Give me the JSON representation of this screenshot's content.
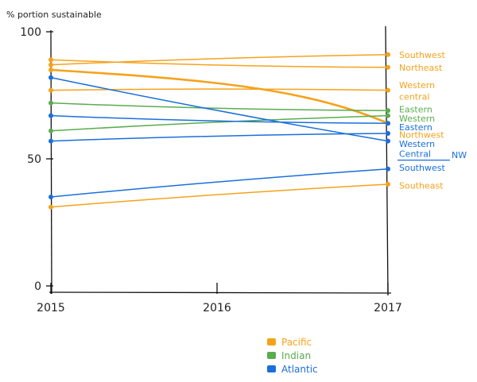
{
  "chart_data": {
    "type": "line",
    "ylabel": "% portion sustainable",
    "x": [
      "2015",
      "2017"
    ],
    "x_ticks": [
      "2015",
      "2016",
      "2017"
    ],
    "y_ticks": [
      "0",
      "50",
      "100"
    ],
    "ylim": [
      0,
      100
    ],
    "grid": false,
    "legend_position": "bottom-center",
    "groups": [
      {
        "name": "Pacific",
        "color": "#f5a21b"
      },
      {
        "name": "Indian",
        "color": "#5aac4e"
      },
      {
        "name": "Atlantic",
        "color": "#1a6fdc"
      }
    ],
    "series": [
      {
        "label": "Southwest",
        "group": "Pacific",
        "values": [
          87,
          91
        ]
      },
      {
        "label": "Northeast",
        "group": "Pacific",
        "values": [
          89,
          86
        ]
      },
      {
        "label": "Western central",
        "group": "Pacific",
        "values": [
          77,
          77
        ]
      },
      {
        "label": "Northwest",
        "group": "Pacific",
        "values": [
          85,
          64
        ],
        "emphasis": true
      },
      {
        "label": "Southeast",
        "group": "Pacific",
        "values": [
          31,
          40
        ]
      },
      {
        "label": "Eastern",
        "group": "Indian",
        "values": [
          72,
          69
        ]
      },
      {
        "label": "Western",
        "group": "Indian",
        "values": [
          61,
          67
        ]
      },
      {
        "label": "Eastern",
        "group": "Atlantic",
        "values": [
          67,
          64
        ]
      },
      {
        "label": "Western Central",
        "group": "Atlantic",
        "values": [
          82,
          57
        ]
      },
      {
        "label": "NW",
        "group": "Atlantic",
        "values": [
          57,
          60
        ]
      },
      {
        "label": "Southwest",
        "group": "Atlantic",
        "values": [
          35,
          46
        ]
      }
    ],
    "end_labels": [
      {
        "text": "Southwest",
        "group": "Pacific",
        "y": 91
      },
      {
        "text": "Northeast",
        "group": "Pacific",
        "y": 86
      },
      {
        "text": "Western",
        "group": "Pacific",
        "y": 79
      },
      {
        "text": "central",
        "group": "Pacific",
        "y": 74.5
      },
      {
        "text": "Eastern",
        "group": "Indian",
        "y": 69.5
      },
      {
        "text": "Western",
        "group": "Indian",
        "y": 66
      },
      {
        "text": "Eastern",
        "group": "Atlantic",
        "y": 62.5
      },
      {
        "text": "Northwest",
        "group": "Pacific",
        "y": 59.5
      },
      {
        "text": "Western",
        "group": "Atlantic",
        "y": 56
      },
      {
        "text": "Central",
        "group": "Atlantic",
        "y": 52
      },
      {
        "text": "NW",
        "group": "Atlantic",
        "y": 51.5,
        "offset": "right"
      },
      {
        "text": "Southwest",
        "group": "Atlantic",
        "y": 46.5
      },
      {
        "text": "Southeast",
        "group": "Pacific",
        "y": 39.5
      }
    ]
  }
}
